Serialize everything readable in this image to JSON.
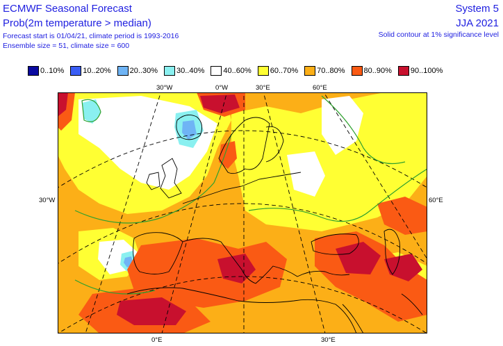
{
  "header": {
    "title": "ECMWF Seasonal Forecast",
    "subtitle": "Prob(2m temperature > median)",
    "forecast_info": "Forecast start is 01/04/21, climate period is 1993-2016",
    "ensemble_info": "Ensemble size = 51, climate size = 600",
    "system": "System 5",
    "period": "JJA 2021",
    "significance_note": "Solid contour at 1% significance level"
  },
  "legend": [
    {
      "label": "0..10%",
      "color": "#0a0aa0"
    },
    {
      "label": "10..20%",
      "color": "#3a5ef5"
    },
    {
      "label": "20..30%",
      "color": "#6fb4f5"
    },
    {
      "label": "30..40%",
      "color": "#8af0f0"
    },
    {
      "label": "40..60%",
      "color": "#ffffff"
    },
    {
      "label": "60..70%",
      "color": "#ffff33"
    },
    {
      "label": "70..80%",
      "color": "#fcaf17"
    },
    {
      "label": "80..90%",
      "color": "#fa5a14"
    },
    {
      "label": "90..100%",
      "color": "#c8102e"
    }
  ],
  "graticule": {
    "top_labels": [
      "30°W",
      "0°W",
      "30°E",
      "60°E"
    ],
    "left_label": "30°W",
    "right_label": "60°E",
    "bottom_labels": [
      "0°E",
      "30°E"
    ]
  },
  "colors": {
    "frame": "#000000",
    "coast": "#000000",
    "significance_contour": "#2ea02e"
  }
}
